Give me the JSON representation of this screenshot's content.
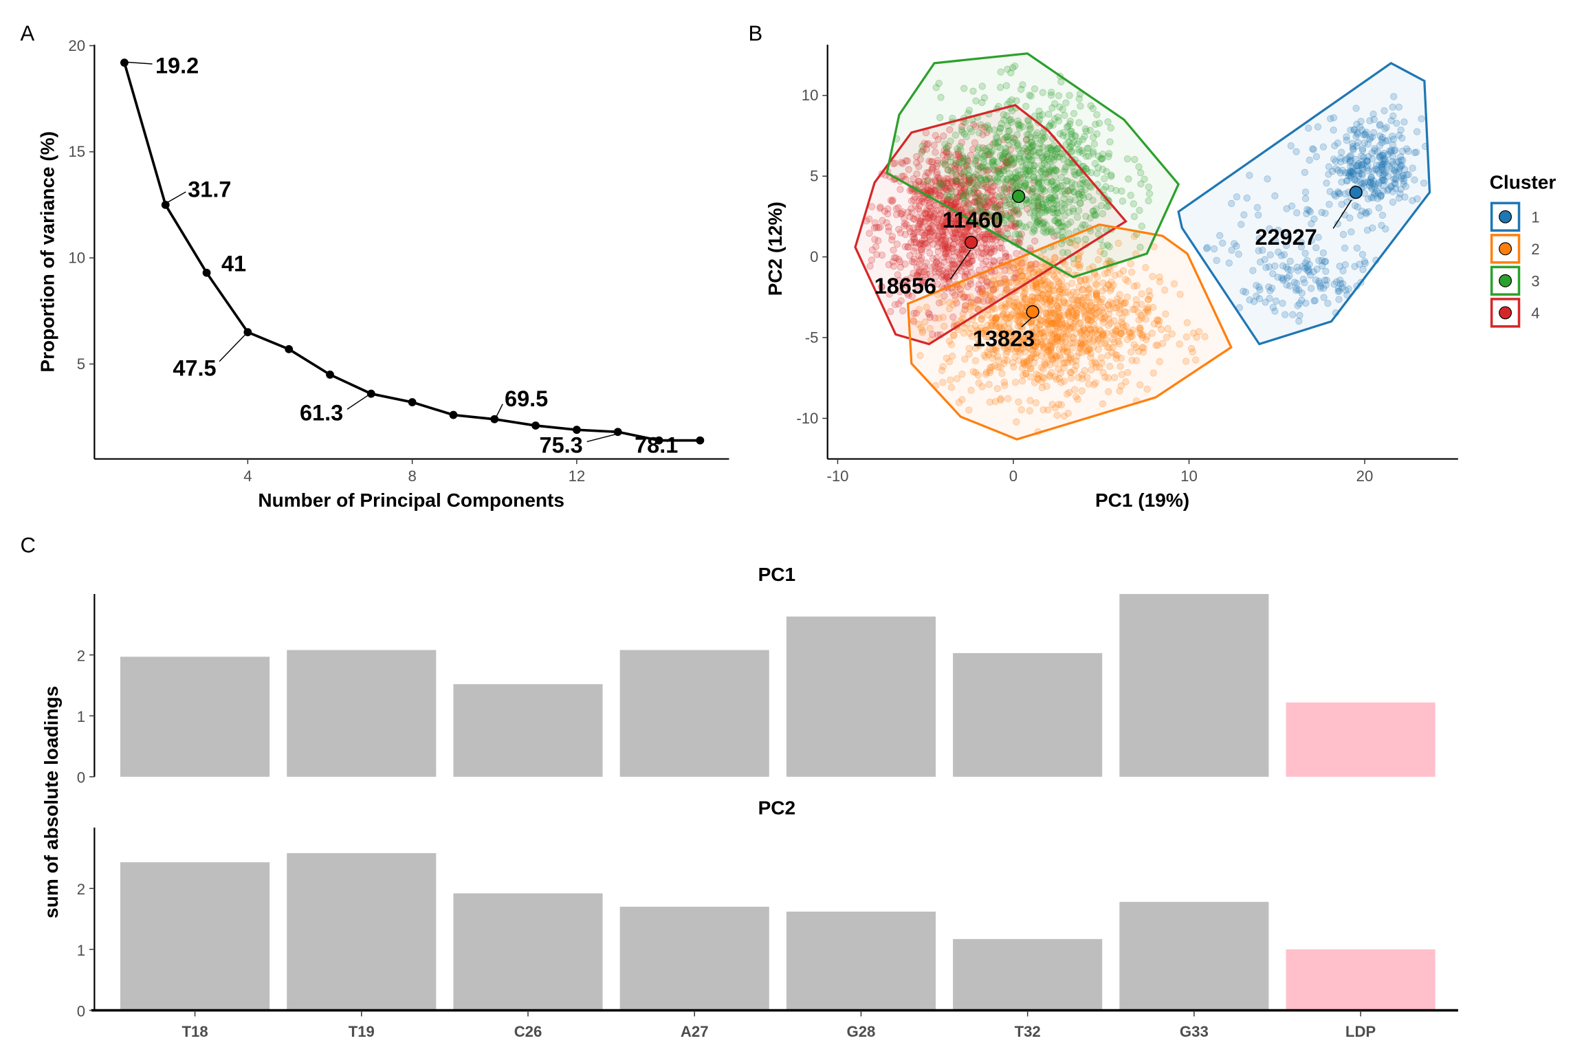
{
  "chart_data": [
    {
      "panel": "A",
      "type": "line",
      "xlabel": "Number of Principal Components",
      "ylabel": "Proportion of variance (%)",
      "x": [
        1,
        2,
        3,
        4,
        5,
        6,
        7,
        8,
        9,
        10,
        11,
        12,
        13,
        14,
        15
      ],
      "y": [
        19.2,
        12.5,
        9.3,
        6.5,
        5.7,
        4.5,
        3.6,
        3.2,
        2.6,
        2.4,
        2.1,
        1.9,
        1.8,
        1.4,
        1.4
      ],
      "xticks": [
        4,
        8,
        12
      ],
      "yticks": [
        5,
        10,
        15,
        20
      ],
      "xlim": [
        0,
        16
      ],
      "ylim": [
        0,
        20
      ],
      "cumulative_labels": [
        {
          "pc": 1,
          "text": "19.2"
        },
        {
          "pc": 2,
          "text": "31.7"
        },
        {
          "pc": 3,
          "text": "41"
        },
        {
          "pc": 4,
          "text": "47.5"
        },
        {
          "pc": 7,
          "text": "61.3"
        },
        {
          "pc": 10,
          "text": "69.5"
        },
        {
          "pc": 13,
          "text": "75.3"
        },
        {
          "pc": 15,
          "text": "78.1"
        }
      ]
    },
    {
      "panel": "B",
      "type": "scatter",
      "xlabel": "PC1 (19%)",
      "ylabel": "PC2 (12%)",
      "xticks": [
        -10,
        0,
        10,
        20
      ],
      "yticks": [
        -10,
        -5,
        0,
        5,
        10
      ],
      "legend_title": "Cluster",
      "legend_position": "right",
      "clusters": [
        {
          "id": "1",
          "color": "#1f77b4",
          "label": "22927",
          "centroid": [
            19.5,
            4.0
          ],
          "components": [
            {
              "mean": [
                20.5,
                5.5
              ],
              "sd": [
                1.4,
                1.6
              ],
              "n": 300
            },
            {
              "mean": [
                16.5,
                -1.5
              ],
              "sd": [
                1.8,
                1.6
              ],
              "n": 130
            },
            {
              "mean": [
                15,
                2
              ],
              "sd": [
                3,
                3
              ],
              "n": 50
            }
          ],
          "hull": [
            [
              9.4,
              2.8
            ],
            [
              21.5,
              12.0
            ],
            [
              23.4,
              10.9
            ],
            [
              23.7,
              4.0
            ],
            [
              18.1,
              -4.0
            ],
            [
              14.0,
              -5.4
            ],
            [
              9.6,
              1.8
            ]
          ]
        },
        {
          "id": "2",
          "color": "#ff7f0e",
          "label": "13823",
          "centroid": [
            1.1,
            -3.4
          ],
          "components": [
            {
              "mean": [
                2.0,
                -4.0
              ],
              "sd": [
                3.0,
                2.3
              ],
              "n": 1100
            }
          ],
          "hull": [
            [
              4.9,
              2.0
            ],
            [
              8.5,
              1.3
            ],
            [
              9.9,
              0.2
            ],
            [
              12.4,
              -5.6
            ],
            [
              8.1,
              -8.7
            ],
            [
              0.2,
              -11.3
            ],
            [
              -3.0,
              -9.9
            ],
            [
              -5.8,
              -6.6
            ],
            [
              -6.0,
              -2.9
            ]
          ]
        },
        {
          "id": "3",
          "color": "#2ca02c",
          "label": "11460",
          "centroid": [
            0.3,
            3.75
          ],
          "components": [
            {
              "mean": [
                1.0,
                5.0
              ],
              "sd": [
                2.6,
                2.6
              ],
              "n": 800
            }
          ],
          "hull": [
            [
              -4.5,
              12.0
            ],
            [
              0.8,
              12.6
            ],
            [
              6.3,
              8.5
            ],
            [
              9.4,
              4.5
            ],
            [
              7.6,
              0.2
            ],
            [
              3.4,
              -1.25
            ],
            [
              -7.2,
              5.2
            ],
            [
              -6.5,
              8.8
            ]
          ]
        },
        {
          "id": "4",
          "color": "#d62728",
          "label": "18656",
          "centroid": [
            -2.4,
            0.9
          ],
          "components": [
            {
              "mean": [
                -3.5,
                2.0
              ],
              "sd": [
                2.1,
                2.6
              ],
              "n": 1000
            }
          ],
          "hull": [
            [
              0.1,
              9.4
            ],
            [
              2.0,
              7.8
            ],
            [
              6.4,
              2.2
            ],
            [
              -4.8,
              -5.4
            ],
            [
              -6.7,
              -4.8
            ],
            [
              -9.0,
              0.6
            ],
            [
              -7.9,
              4.6
            ],
            [
              -5.8,
              7.7
            ]
          ]
        }
      ]
    },
    {
      "panel": "C",
      "type": "bar",
      "ylabel": "sum of absolute loadings",
      "categories": [
        "T18",
        "T19",
        "C26",
        "A27",
        "G28",
        "T32",
        "G33",
        "LDP"
      ],
      "highlight_category": "LDP",
      "bar_color": "#bebebe",
      "highlight_color": "#ffc0cb",
      "yticks": [
        0,
        1,
        2
      ],
      "facets": [
        {
          "title": "PC1",
          "values": [
            1.97,
            2.08,
            1.52,
            2.08,
            2.63,
            2.03,
            3.0,
            1.22
          ]
        },
        {
          "title": "PC2",
          "values": [
            2.43,
            2.58,
            1.92,
            1.7,
            1.62,
            1.17,
            1.78,
            1.0
          ]
        }
      ]
    }
  ],
  "panel_labels": [
    "A",
    "B",
    "C"
  ]
}
